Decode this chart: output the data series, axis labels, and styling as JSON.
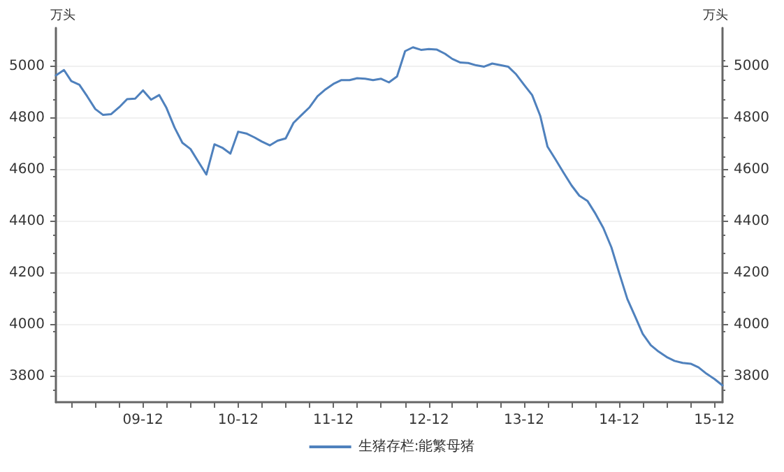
{
  "chart_data": {
    "type": "line",
    "ylabel": "万头",
    "y2label": "万头",
    "x": [
      "2009-01",
      "2009-02",
      "2009-03",
      "2009-04",
      "2009-05",
      "2009-06",
      "2009-07",
      "2009-08",
      "2009-09",
      "2009-10",
      "2009-11",
      "2009-12",
      "2010-01",
      "2010-02",
      "2010-03",
      "2010-04",
      "2010-05",
      "2010-06",
      "2010-07",
      "2010-08",
      "2010-09",
      "2010-10",
      "2010-11",
      "2010-12",
      "2011-01",
      "2011-02",
      "2011-03",
      "2011-04",
      "2011-05",
      "2011-06",
      "2011-07",
      "2011-08",
      "2011-09",
      "2011-10",
      "2011-11",
      "2011-12",
      "2012-01",
      "2012-02",
      "2012-03",
      "2012-04",
      "2012-05",
      "2012-06",
      "2012-07",
      "2012-08",
      "2012-09",
      "2012-10",
      "2012-11",
      "2012-12",
      "2013-01",
      "2013-02",
      "2013-03",
      "2013-04",
      "2013-05",
      "2013-06",
      "2013-07",
      "2013-08",
      "2013-09",
      "2013-10",
      "2013-11",
      "2013-12",
      "2014-01",
      "2014-02",
      "2014-03",
      "2014-04",
      "2014-05",
      "2014-06",
      "2014-07",
      "2014-08",
      "2014-09",
      "2014-10",
      "2014-11",
      "2014-12",
      "2015-01",
      "2015-02",
      "2015-03",
      "2015-04",
      "2015-05",
      "2015-06",
      "2015-07",
      "2015-08",
      "2015-09",
      "2015-10",
      "2015-11",
      "2015-12",
      "2016-01"
    ],
    "series": [
      {
        "name": "生猪存栏:能繁母猪",
        "color": "#4f81bd",
        "values": [
          4966,
          4987,
          4944,
          4930,
          4885,
          4836,
          4813,
          4816,
          4843,
          4874,
          4876,
          4908,
          4872,
          4890,
          4840,
          4764,
          4705,
          4681,
          4632,
          4582,
          4699,
          4686,
          4663,
          4748,
          4741,
          4726,
          4710,
          4695,
          4713,
          4722,
          4782,
          4813,
          4843,
          4885,
          4912,
          4933,
          4948,
          4948,
          4955,
          4953,
          4948,
          4953,
          4939,
          4962,
          5060,
          5075,
          5065,
          5068,
          5066,
          5050,
          5030,
          5016,
          5014,
          5005,
          5000,
          5012,
          5006,
          5000,
          4970,
          4930,
          4890,
          4810,
          4690,
          4640,
          4590,
          4540,
          4500,
          4480,
          4430,
          4375,
          4300,
          4200,
          4100,
          4030,
          3965,
          3921,
          3896,
          3875,
          3860,
          3852,
          3849,
          3835,
          3810,
          3790,
          3765
        ]
      }
    ],
    "xlim": [
      "2009-01",
      "2016-01"
    ],
    "xticks": [
      {
        "value": "2009-03",
        "label": null
      },
      {
        "value": "2009-06",
        "label": null
      },
      {
        "value": "2009-09",
        "label": null
      },
      {
        "value": "2009-12",
        "label": "09-12"
      },
      {
        "value": "2010-03",
        "label": null
      },
      {
        "value": "2010-06",
        "label": null
      },
      {
        "value": "2010-09",
        "label": null
      },
      {
        "value": "2010-12",
        "label": "10-12"
      },
      {
        "value": "2011-03",
        "label": null
      },
      {
        "value": "2011-06",
        "label": null
      },
      {
        "value": "2011-09",
        "label": null
      },
      {
        "value": "2011-12",
        "label": "11-12"
      },
      {
        "value": "2012-03",
        "label": null
      },
      {
        "value": "2012-06",
        "label": null
      },
      {
        "value": "2012-09",
        "label": null
      },
      {
        "value": "2012-12",
        "label": "12-12"
      },
      {
        "value": "2013-03",
        "label": null
      },
      {
        "value": "2013-06",
        "label": null
      },
      {
        "value": "2013-09",
        "label": null
      },
      {
        "value": "2013-12",
        "label": "13-12"
      },
      {
        "value": "2014-03",
        "label": null
      },
      {
        "value": "2014-06",
        "label": null
      },
      {
        "value": "2014-09",
        "label": null
      },
      {
        "value": "2014-12",
        "label": "14-12"
      },
      {
        "value": "2015-03",
        "label": null
      },
      {
        "value": "2015-06",
        "label": null
      },
      {
        "value": "2015-09",
        "label": null
      },
      {
        "value": "2015-12",
        "label": "15-12"
      }
    ],
    "ylim": [
      3700,
      5150
    ],
    "yticks": [
      3800,
      4000,
      4200,
      4400,
      4600,
      4800,
      5000
    ],
    "y2lim": [
      3700,
      5150
    ],
    "y2ticks": [
      3800,
      4000,
      4200,
      4400,
      4600,
      4800,
      5000
    ],
    "grid": "y",
    "legend": "bottom",
    "marker": "none",
    "line_style": "solid"
  }
}
